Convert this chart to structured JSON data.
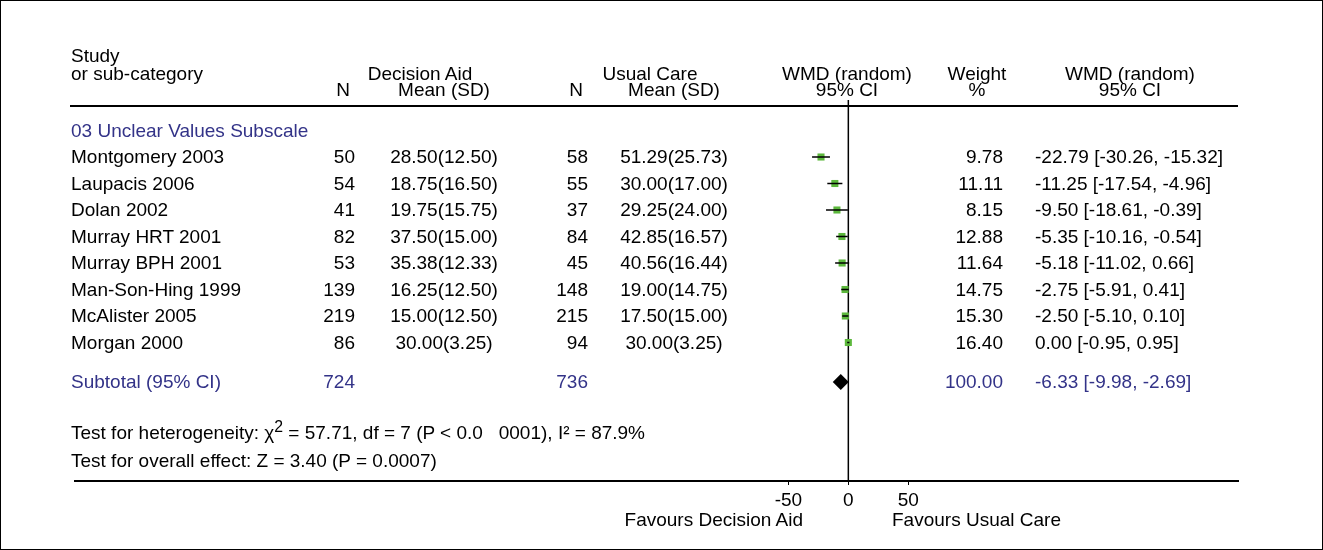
{
  "chart_data": {
    "type": "scatter",
    "orientation": "horizontal",
    "categories": [
      "Montgomery 2003",
      "Laupacis 2006",
      "Dolan 2002",
      "Murray HRT 2001",
      "Murray BPH 2001",
      "Man-Son-Hing 1999",
      "McAlister 2005",
      "Morgan 2000",
      "Subtotal (95% CI)"
    ],
    "series": [
      {
        "color": "#5cb83c",
        "marker": "square",
        "values": [
          -22.79,
          -11.25,
          -9.5,
          -5.35,
          -5.18,
          -2.75,
          -2.5,
          0.0,
          null
        ],
        "errors": [
          [
            -30.26,
            -15.32
          ],
          [
            -17.54,
            -4.96
          ],
          [
            -18.61,
            -0.39
          ],
          [
            -10.16,
            -0.54
          ],
          [
            -11.02,
            0.66
          ],
          [
            -5.91,
            0.41
          ],
          [
            -5.1,
            0.1
          ],
          [
            -0.95,
            0.95
          ],
          null
        ]
      },
      {
        "color": "#000000",
        "marker": "diamond",
        "values": [
          null,
          null,
          null,
          null,
          null,
          null,
          null,
          null,
          -6.33
        ],
        "errors": [
          null,
          null,
          null,
          null,
          null,
          null,
          null,
          null,
          [
            -9.98,
            -2.69
          ]
        ]
      }
    ],
    "xlim": [
      -645,
      325
    ],
    "xticks": [
      -50,
      0,
      50
    ],
    "ref_lines": [
      {
        "axis": "x",
        "value": 0,
        "color": "#000000"
      }
    ],
    "grid": false,
    "legend": false,
    "annotations": [
      "Study",
      "or sub-category",
      "Decision Aid",
      "N",
      "Mean (SD)",
      "Usual Care",
      "N",
      "Mean (SD)",
      "WMD (random)",
      "95% CI",
      "Weight",
      "%",
      "WMD (random)",
      "95% CI",
      "03 Unclear Values Subscale",
      "50",
      "28.50(12.50)",
      "58",
      "51.29(25.73)",
      "9.78",
      "-22.79 [-30.26, -15.32]",
      "54",
      "18.75(16.50)",
      "55",
      "30.00(17.00)",
      "11.11",
      "-11.25 [-17.54, -4.96]",
      "41",
      "19.75(15.75)",
      "37",
      "29.25(24.00)",
      "8.15",
      "-9.50 [-18.61, -0.39]",
      "82",
      "37.50(15.00)",
      "84",
      "42.85(16.57)",
      "12.88",
      "-5.35 [-10.16, -0.54]",
      "53",
      "35.38(12.33)",
      "45",
      "40.56(16.44)",
      "11.64",
      "-5.18 [-11.02, 0.66]",
      "139",
      "16.25(12.50)",
      "148",
      "19.00(14.75)",
      "14.75",
      "-2.75 [-5.91, 0.41]",
      "219",
      "15.00(12.50)",
      "215",
      "17.50(15.00)",
      "15.30",
      "-2.50 [-5.10, 0.10]",
      "86",
      "30.00(3.25)",
      "94",
      "30.00(3.25)",
      "16.40",
      "0.00 [-0.95, 0.95]",
      "724",
      "736",
      "100.00",
      "-6.33 [-9.98, -2.69]",
      "Test for heterogeneity: χ$^{2}$ = 57.71, df = 7 (P < 0.0   0001), I² = 87.9%",
      "Test for overall effect: Z = 3.40 (P = 0.0007)",
      "Favours Decision Aid",
      "Favours Usual Care"
    ]
  }
}
